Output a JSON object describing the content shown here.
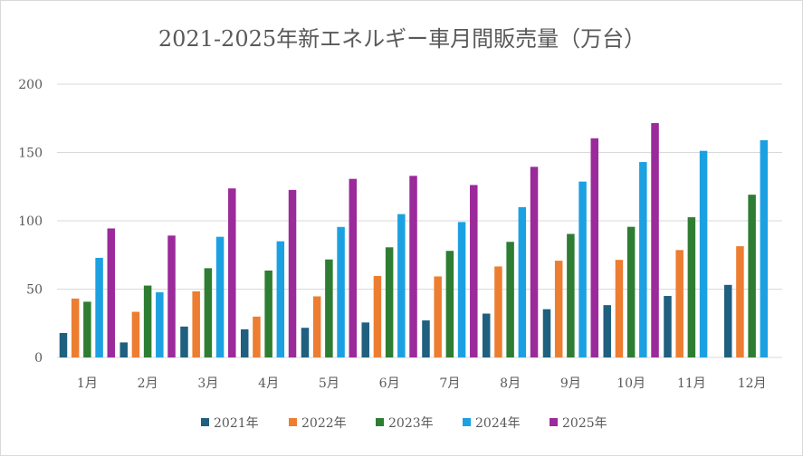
{
  "chart_data": {
    "type": "bar",
    "title": "2021-2025年新エネルギー車月間販売量（万台）",
    "xlabel": "",
    "ylabel": "",
    "ylim": [
      0,
      200
    ],
    "yticks": [
      0,
      50,
      100,
      150,
      200
    ],
    "grid": true,
    "legend_position": "bottom",
    "categories": [
      "1月",
      "2月",
      "3月",
      "4月",
      "5月",
      "6月",
      "7月",
      "8月",
      "9月",
      "10月",
      "11月",
      "12月"
    ],
    "series": [
      {
        "name": "2021年",
        "color": "#1f5f7f",
        "values": [
          17.9,
          11.0,
          22.6,
          20.6,
          21.7,
          25.6,
          27.1,
          32.1,
          35.3,
          38.3,
          45.0,
          53.1
        ]
      },
      {
        "name": "2022年",
        "color": "#ed7d31",
        "values": [
          43.1,
          33.4,
          48.4,
          29.9,
          44.7,
          59.6,
          59.3,
          66.6,
          70.8,
          71.4,
          78.6,
          81.4
        ]
      },
      {
        "name": "2023年",
        "color": "#2e7d32",
        "values": [
          40.8,
          52.6,
          65.3,
          63.6,
          71.7,
          80.6,
          78.0,
          84.6,
          90.4,
          95.6,
          102.6,
          119.1
        ]
      },
      {
        "name": "2024年",
        "color": "#1ba1e2",
        "values": [
          72.9,
          47.7,
          88.3,
          85.0,
          95.5,
          104.9,
          99.1,
          110.0,
          128.7,
          143.0,
          151.2,
          159.0
        ]
      },
      {
        "name": "2025年",
        "color": "#9b2a9b",
        "values": [
          94.4,
          89.2,
          123.7,
          122.6,
          130.7,
          132.9,
          126.2,
          139.5,
          160.4,
          171.5,
          null,
          null
        ]
      }
    ]
  }
}
